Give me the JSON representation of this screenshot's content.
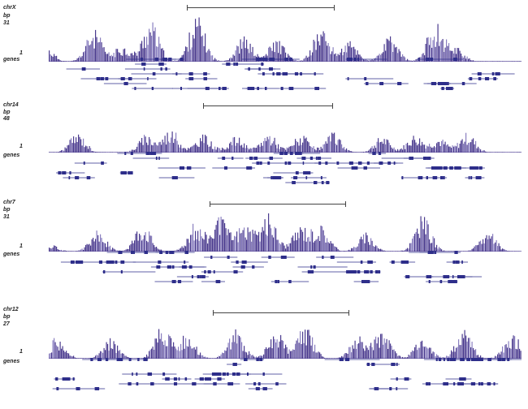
{
  "panels": [
    {
      "chrom": "chrX",
      "units": "bp",
      "zoom": "31",
      "peak_level": "1",
      "genes_label": "genes",
      "scale_ticks": [
        "",
        "",
        "",
        "",
        "",
        "",
        "",
        ""
      ],
      "ruler_left": "",
      "ruler_right": ""
    },
    {
      "chrom": "chr14",
      "units": "bp",
      "zoom": "48",
      "peak_level": "1",
      "genes_label": "genes",
      "scale_ticks": [
        "",
        "",
        "",
        "",
        "",
        "",
        "",
        ""
      ],
      "ruler_left": "",
      "ruler_right": ""
    },
    {
      "chrom": "chr7",
      "units": "bp",
      "zoom": "31",
      "peak_level": "1",
      "genes_label": "genes",
      "scale_ticks": [
        "",
        "",
        "",
        "",
        "",
        "",
        "",
        ""
      ],
      "ruler_left": "",
      "ruler_right": ""
    },
    {
      "chrom": "chr12",
      "units": "bp",
      "zoom": "27",
      "peak_level": "1",
      "genes_label": "genes",
      "scale_ticks": [
        "",
        "",
        "",
        "",
        "",
        "",
        "",
        ""
      ],
      "ruler_left": "",
      "ruler_right": ""
    }
  ],
  "colors": {
    "signal": "#4b3b8f",
    "signal_light": "#8a7fc0",
    "gene": "#2e2e8a",
    "ruler": "#444444"
  }
}
